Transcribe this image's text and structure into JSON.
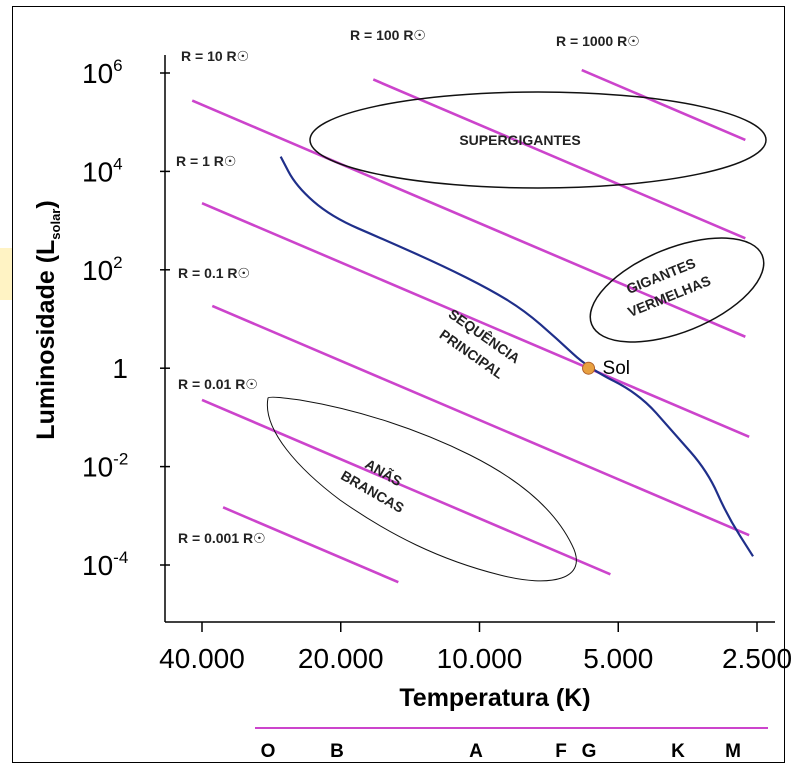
{
  "chart_data": {
    "type": "scatter",
    "title": "",
    "xlabel": "Temperatura (K)",
    "ylabel_main": "Luminosidade (L",
    "ylabel_sub": "solar",
    "ylabel_end": ")",
    "x_scale": "log-reversed",
    "y_scale": "log",
    "xlim": [
      46000,
      2400
    ],
    "ylim": [
      1e-05,
      3000000
    ],
    "x_ticks": [
      {
        "value": 40000,
        "label": "40.000"
      },
      {
        "value": 20000,
        "label": "20.000"
      },
      {
        "value": 10000,
        "label": "10.000"
      },
      {
        "value": 5000,
        "label": "5.000"
      },
      {
        "value": 2500,
        "label": "2.500"
      }
    ],
    "y_ticks": [
      {
        "value": 1000000,
        "base": "10",
        "exp": "6"
      },
      {
        "value": 10000,
        "base": "10",
        "exp": "4"
      },
      {
        "value": 100,
        "base": "10",
        "exp": "2"
      },
      {
        "value": 1,
        "base": "1",
        "exp": ""
      },
      {
        "value": 0.01,
        "base": "10",
        "exp": "-2"
      },
      {
        "value": 0.0001,
        "base": "10",
        "exp": "-4"
      }
    ],
    "radius_lines": [
      {
        "label": "R = 0.001 R☉",
        "radius": 0.001
      },
      {
        "label": "R = 0.01 R☉",
        "radius": 0.01
      },
      {
        "label": "R = 0.1 R☉",
        "radius": 0.1
      },
      {
        "label": "R = 1 R☉",
        "radius": 1
      },
      {
        "label": "R = 10 R☉",
        "radius": 10
      },
      {
        "label": "R = 100 R☉",
        "radius": 100
      },
      {
        "label": "R = 1000 R☉",
        "radius": 1000
      }
    ],
    "main_sequence": [
      {
        "t": 27000,
        "l": 20000
      },
      {
        "t": 25000,
        "l": 5000
      },
      {
        "t": 21000,
        "l": 1200
      },
      {
        "t": 16000,
        "l": 400
      },
      {
        "t": 12000,
        "l": 120
      },
      {
        "t": 9500,
        "l": 40
      },
      {
        "t": 8000,
        "l": 15
      },
      {
        "t": 6800,
        "l": 4
      },
      {
        "t": 5800,
        "l": 1
      },
      {
        "t": 4500,
        "l": 0.3
      },
      {
        "t": 3800,
        "l": 0.05
      },
      {
        "t": 3200,
        "l": 0.008
      },
      {
        "t": 2900,
        "l": 0.001
      },
      {
        "t": 2550,
        "l": 0.00015
      }
    ],
    "sun": {
      "t": 5800,
      "l": 1,
      "label": "Sol"
    },
    "regions": [
      {
        "name": "supergiants",
        "lines": [
          "SUPERGIGANTES"
        ]
      },
      {
        "name": "red-giants",
        "lines": [
          "GIGANTES",
          "VERMELHAS"
        ]
      },
      {
        "name": "main-sequence",
        "lines": [
          "SEQUÊNCIA",
          "PRINCIPAL"
        ]
      },
      {
        "name": "white-dwarfs",
        "lines": [
          "ANÃS",
          "BRANCAS"
        ]
      }
    ],
    "spectral_classes": [
      {
        "letter": "O",
        "t": 46000
      },
      {
        "letter": "B",
        "t": 20000
      },
      {
        "letter": "A",
        "t": 10000
      },
      {
        "letter": "F",
        "t": 6900
      },
      {
        "letter": "G",
        "t": 5800
      },
      {
        "letter": "K",
        "t": 3900
      },
      {
        "letter": "M",
        "t": 2900
      }
    ]
  },
  "colors": {
    "radius_line": "#cc44cc",
    "main_sequence": "#1f2f8a",
    "sun": "#e8a040",
    "spectral_bar": "#cc44cc",
    "region_outline": "#111111"
  }
}
